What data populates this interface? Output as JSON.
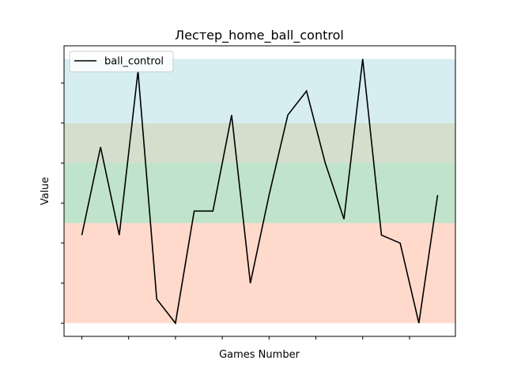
{
  "chart_data": {
    "type": "line",
    "title": "Лестер_home_ball_control",
    "xlabel": "Games Number",
    "ylabel": "Value",
    "x": [
      0,
      1,
      2,
      3,
      4,
      5,
      6,
      7,
      8,
      9,
      10,
      11,
      12,
      13,
      14,
      15,
      16,
      17,
      18,
      19
    ],
    "series": [
      {
        "name": "ball_control",
        "color": "#000000",
        "values": [
          11,
          22,
          11,
          31.5,
          3,
          0,
          14,
          14,
          26,
          5,
          16,
          26,
          29,
          20,
          13,
          33,
          11,
          10,
          0,
          16
        ]
      }
    ],
    "bands": [
      {
        "range": [
          0,
          12.5
        ],
        "color": "#ffdacc"
      },
      {
        "range": [
          12.5,
          20
        ],
        "color": "#c0e4cb"
      },
      {
        "range": [
          20,
          25
        ],
        "color": "#d3dfcc"
      },
      {
        "range": [
          25,
          33
        ],
        "color": "#d6eef2"
      }
    ],
    "xlim": [
      -0.95,
      19.95
    ],
    "ylim": [
      -1.65,
      34.65
    ],
    "xticks": [
      0,
      2.5,
      5,
      7.5,
      10,
      12.5,
      15,
      17.5
    ],
    "yticks": [
      0,
      5,
      10,
      15,
      20,
      25,
      30
    ],
    "legend": "upper left"
  }
}
